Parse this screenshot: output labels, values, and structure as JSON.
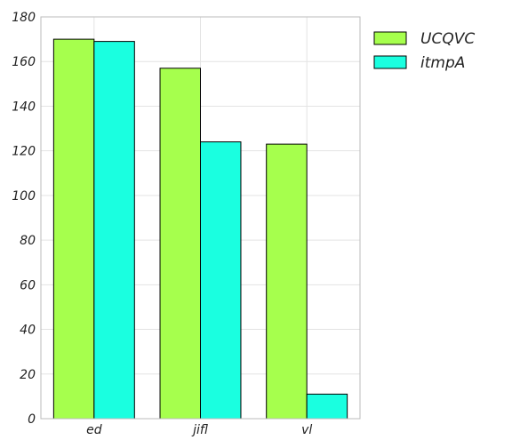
{
  "chart_data": {
    "type": "bar",
    "categories": [
      "ed",
      "jifl",
      "vl"
    ],
    "series": [
      {
        "name": "UCQVC",
        "values": [
          170,
          157,
          123
        ],
        "color": "#a6ff4d"
      },
      {
        "name": "itmpA",
        "values": [
          169,
          124,
          11
        ],
        "color": "#1affe0"
      }
    ],
    "title": "",
    "xlabel": "",
    "ylabel": "",
    "ylim": [
      0,
      180
    ],
    "yticks": [
      0,
      20,
      40,
      60,
      80,
      100,
      120,
      140,
      160,
      180
    ],
    "grid": true,
    "legend_position": "outside-top-right"
  }
}
